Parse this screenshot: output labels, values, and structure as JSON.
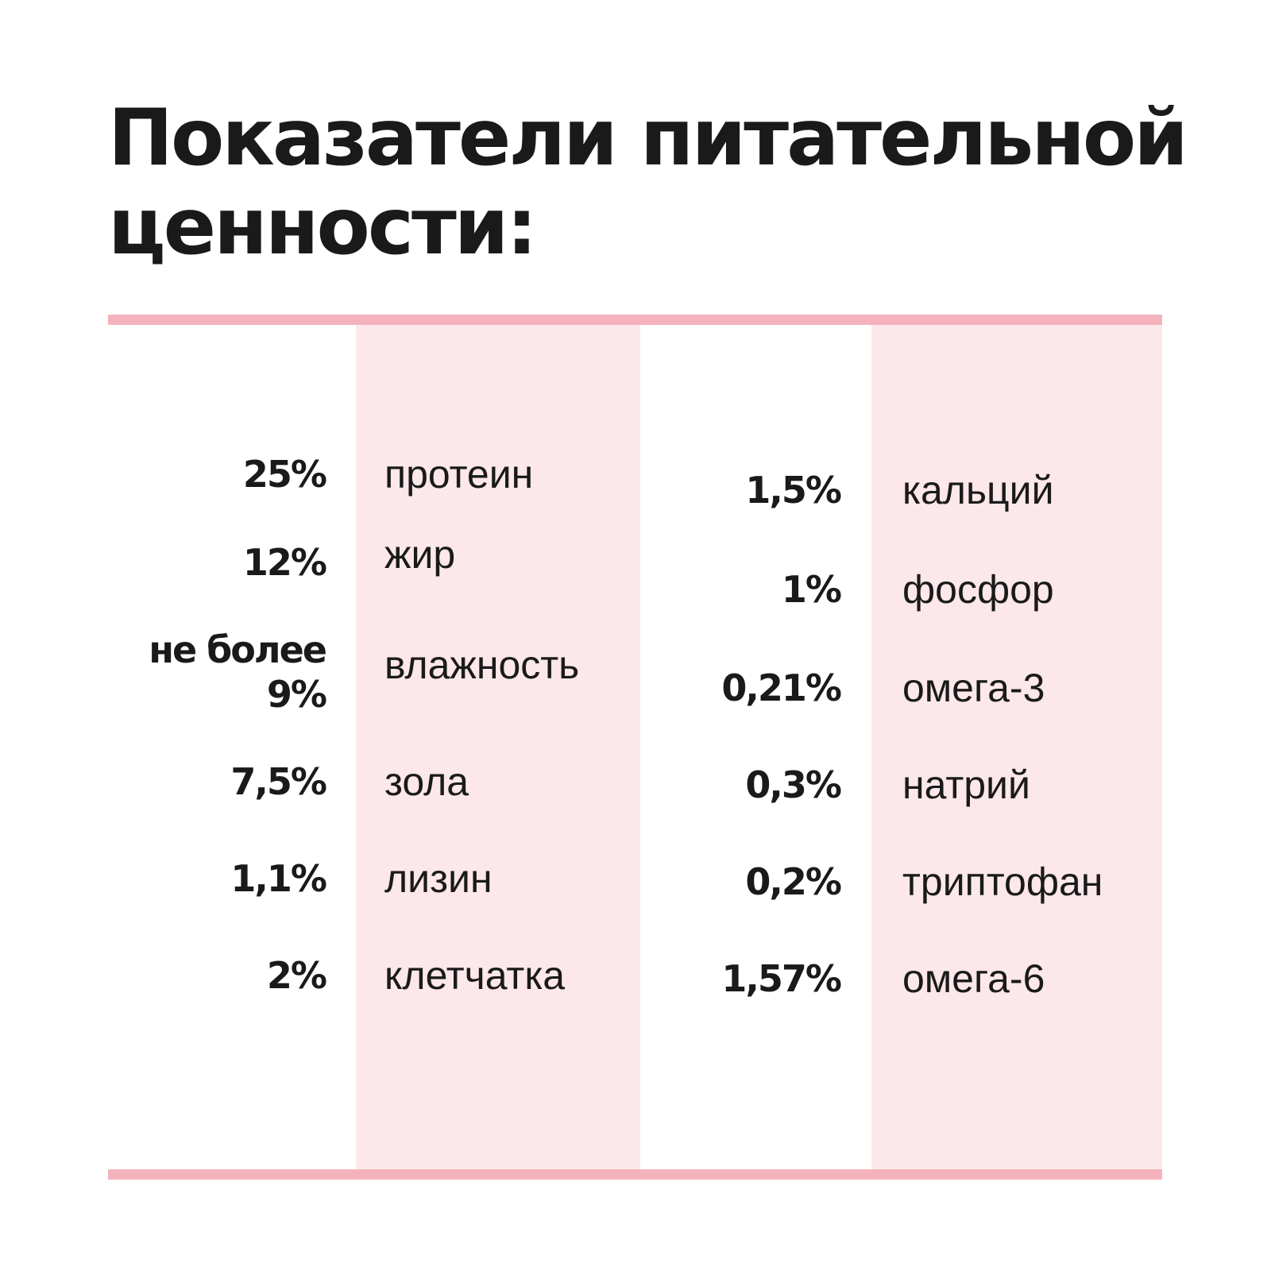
{
  "title": "Показатели питательной ценности:",
  "colors": {
    "rule": "#f4b3bc",
    "band": "#fce7ea",
    "text": "#1a1a1a"
  },
  "left_column": [
    {
      "value": "25%",
      "label": "протеин"
    },
    {
      "value": "12%",
      "label": "жир"
    },
    {
      "value": "не более 9%",
      "label": "влажность"
    },
    {
      "value": "7,5%",
      "label": "зола"
    },
    {
      "value": "1,1%",
      "label": "лизин"
    },
    {
      "value": "2%",
      "label": "клетчатка"
    }
  ],
  "right_column": [
    {
      "value": "1,5%",
      "label": "кальций"
    },
    {
      "value": "1%",
      "label": "фосфор"
    },
    {
      "value": "0,21%",
      "label": "омега-3"
    },
    {
      "value": "0,3%",
      "label": "натрий"
    },
    {
      "value": "0,2%",
      "label": "триптофан"
    },
    {
      "value": "1,57%",
      "label": "омега-6"
    }
  ]
}
